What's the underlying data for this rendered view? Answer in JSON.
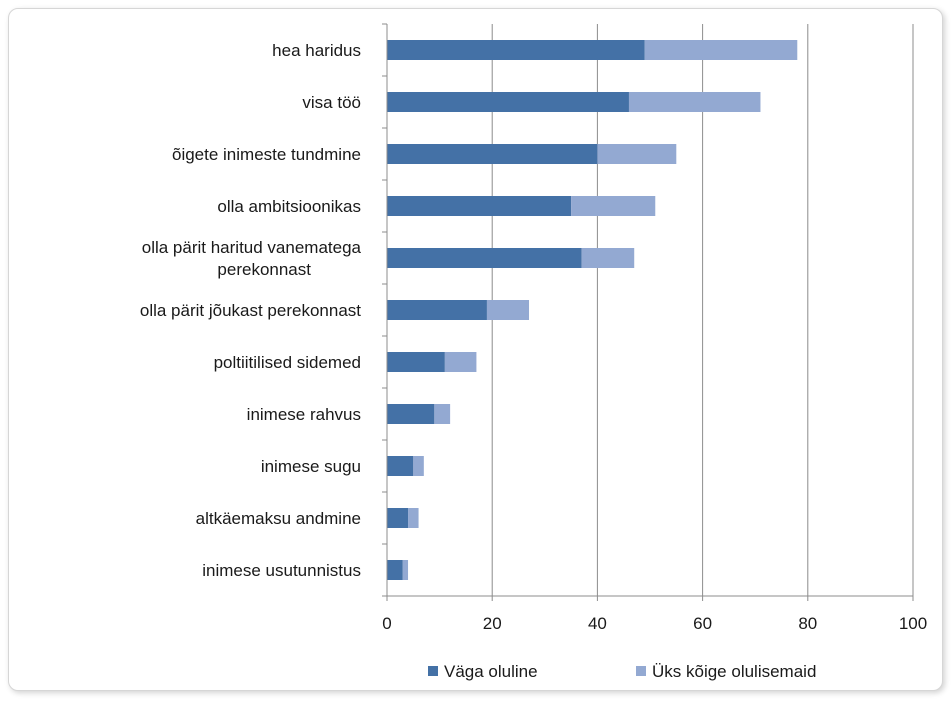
{
  "chart_data": {
    "type": "bar",
    "orientation": "horizontal",
    "stacked": true,
    "categories": [
      "hea haridus",
      "visa töö",
      "õigete inimeste tundmine",
      "olla ambitsioonikas",
      [
        "olla pärit haritud vanematega",
        "perekonnast"
      ],
      "olla pärit jõukast perekonnast",
      "poltiitilised sidemed",
      "inimese rahvus",
      "inimese sugu",
      "altkäemaksu andmine",
      "inimese usutunnistus"
    ],
    "series": [
      {
        "name": "Väga oluline",
        "color": "#4471a6",
        "values": [
          49,
          46,
          40,
          35,
          37,
          19,
          11,
          9,
          5,
          4,
          3
        ]
      },
      {
        "name": "Üks kõige olulisemaid",
        "color": "#93a9d2",
        "values": [
          29,
          25,
          15,
          16,
          10,
          8,
          6,
          3,
          2,
          2,
          1
        ]
      }
    ],
    "xlim": [
      0,
      100
    ],
    "xticks": [
      0,
      20,
      40,
      60,
      80,
      100
    ],
    "grid": "vertical",
    "legend": "bottom"
  }
}
